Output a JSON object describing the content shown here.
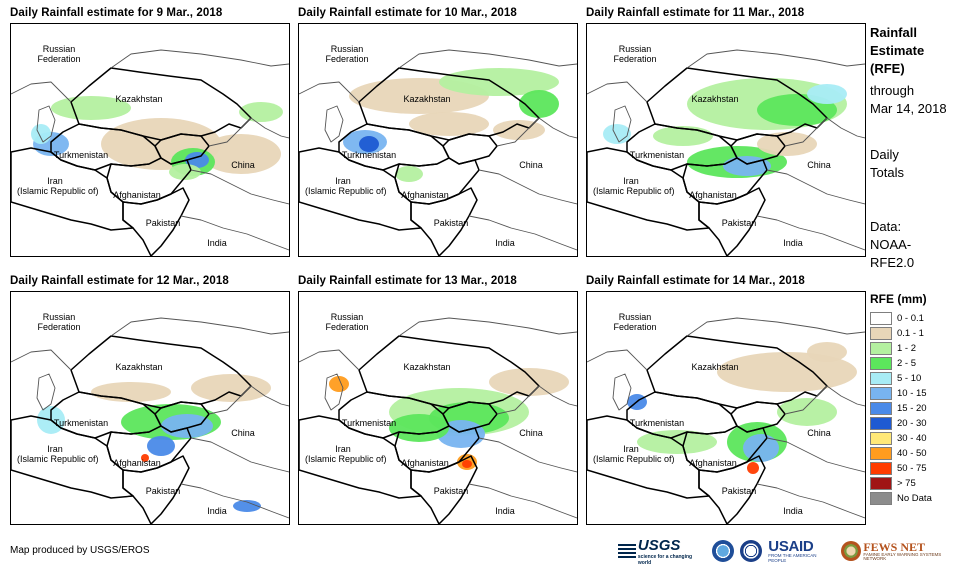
{
  "panels": [
    {
      "title": "Daily Rainfall estimate for 9 Mar., 2018"
    },
    {
      "title": "Daily Rainfall estimate for 10 Mar., 2018"
    },
    {
      "title": "Daily Rainfall estimate for 11 Mar., 2018"
    },
    {
      "title": "Daily Rainfall estimate for 12 Mar., 2018"
    },
    {
      "title": "Daily Rainfall estimate for 13 Mar., 2018"
    },
    {
      "title": "Daily Rainfall estimate for 14 Mar., 2018"
    }
  ],
  "map_labels": {
    "russia_1": "Russian",
    "russia_2": "Federation",
    "kazakhstan": "Kazakhstan",
    "turkmenistan": "Turkmenistan",
    "iran_1": "Iran",
    "iran_2": "(Islamic Republic of)",
    "afghanistan": "Afghanistan",
    "pakistan": "Pakistan",
    "china": "China",
    "india": "India"
  },
  "side_text": {
    "rfe_line1": "Rainfall",
    "rfe_line2": "Estimate",
    "rfe_line3": "(RFE)",
    "through": "through",
    "date": "Mar 14, 2018",
    "daily": "Daily",
    "totals": "Totals",
    "data_label": "Data:",
    "data_src1": "NOAA-",
    "data_src2": "RFE2.0"
  },
  "legend": {
    "title": "RFE (mm)",
    "items": [
      {
        "label": "0 - 0.1",
        "color": "#ffffff"
      },
      {
        "label": "0.1 - 1",
        "color": "#e8d6b8"
      },
      {
        "label": "1 - 2",
        "color": "#b4f0a0"
      },
      {
        "label": "2 - 5",
        "color": "#5ce65c"
      },
      {
        "label": "5 - 10",
        "color": "#a8ecf5"
      },
      {
        "label": "10 - 15",
        "color": "#78b4f0"
      },
      {
        "label": "15 - 20",
        "color": "#4a8ae8"
      },
      {
        "label": "20 - 30",
        "color": "#1e5ad2"
      },
      {
        "label": "30 - 40",
        "color": "#ffe878"
      },
      {
        "label": "40 - 50",
        "color": "#ff9c1e"
      },
      {
        "label": "50 - 75",
        "color": "#ff3c00"
      },
      {
        "label": "> 75",
        "color": "#a01414"
      },
      {
        "label": "No Data",
        "color": "#8c8c8c"
      }
    ]
  },
  "footer": "Map produced by USGS/EROS",
  "logos": {
    "usgs": "USGS",
    "usgs_sub": "science for a changing world",
    "usaid": "USAID",
    "usaid_sub": "FROM THE AMERICAN PEOPLE",
    "fews": "FEWS NET",
    "fews_sub": "FAMINE EARLY WARNING SYSTEMS NETWORK"
  }
}
